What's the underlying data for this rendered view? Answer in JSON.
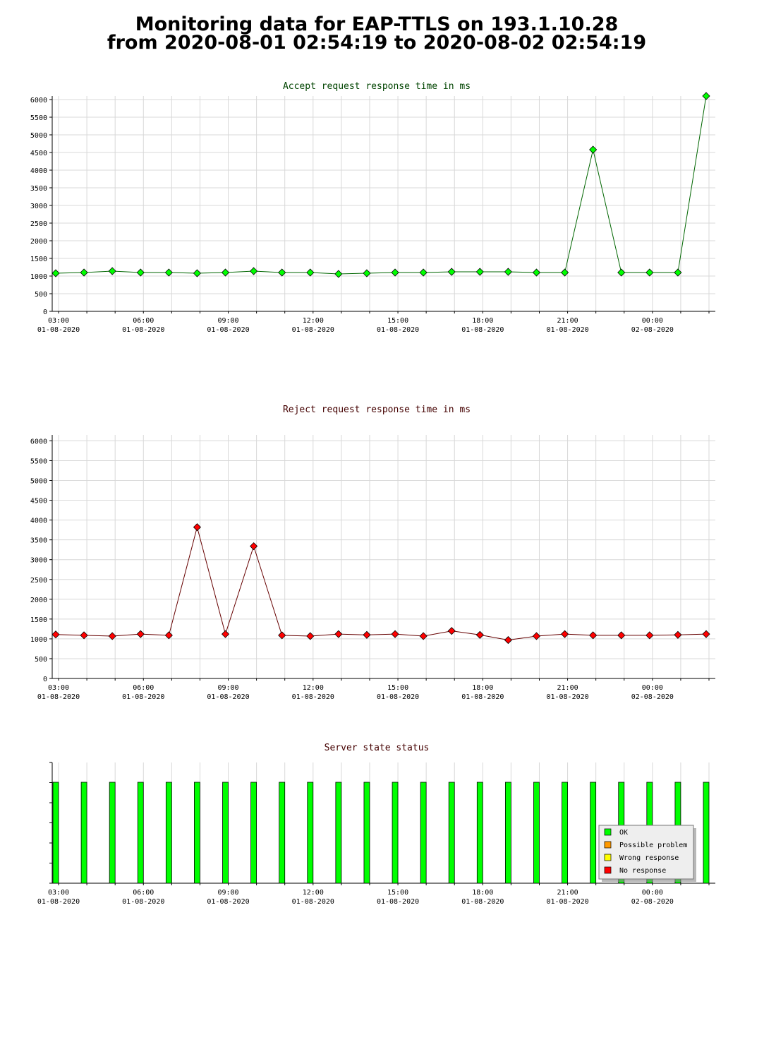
{
  "title": {
    "line1": "Monitoring data for EAP-TTLS on 193.1.10.28",
    "line2": "from 2020-08-01 02:54:19 to 2020-08-02 02:54:19"
  },
  "colors": {
    "accept_marker": "#00ff00",
    "accept_line": "#006600",
    "reject_marker": "#ff0000",
    "reject_line": "#660000",
    "ok": "#00ff00",
    "possible_problem": "#ff9900",
    "wrong_response": "#ffff00",
    "no_response": "#ff0000",
    "grid": "#d8d8d8"
  },
  "x_axis_labels": [
    {
      "time": "03:00",
      "date": "01-08-2020"
    },
    {
      "time": "06:00",
      "date": "01-08-2020"
    },
    {
      "time": "09:00",
      "date": "01-08-2020"
    },
    {
      "time": "12:00",
      "date": "01-08-2020"
    },
    {
      "time": "15:00",
      "date": "01-08-2020"
    },
    {
      "time": "18:00",
      "date": "01-08-2020"
    },
    {
      "time": "21:00",
      "date": "01-08-2020"
    },
    {
      "time": "00:00",
      "date": "02-08-2020"
    }
  ],
  "chart_data": [
    {
      "type": "line",
      "title": "Accept request response time in ms",
      "x_start": "2020-08-01 02:54:19",
      "x_end": "2020-08-02 02:54:19",
      "x": [
        "02:54",
        "03:54",
        "04:54",
        "05:54",
        "06:54",
        "07:54",
        "08:54",
        "09:54",
        "10:54",
        "11:54",
        "12:54",
        "13:54",
        "14:54",
        "15:54",
        "16:54",
        "17:54",
        "18:54",
        "19:54",
        "20:54",
        "21:54",
        "22:54",
        "23:54",
        "00:54",
        "01:54"
      ],
      "series": [
        {
          "values": [
            1080,
            1100,
            1140,
            1100,
            1100,
            1080,
            1100,
            1140,
            1100,
            1100,
            1060,
            1080,
            1100,
            1100,
            1120,
            1120,
            1120,
            1100,
            1100,
            4580,
            1100,
            1100,
            1100,
            6100
          ]
        }
      ],
      "ylim": [
        0,
        6100
      ],
      "yticks": [
        0,
        500,
        1000,
        1500,
        2000,
        2500,
        3000,
        3500,
        4000,
        4500,
        5000,
        5500,
        6000
      ],
      "grid": true
    },
    {
      "type": "line",
      "title": "Reject request response time in ms",
      "x_start": "2020-08-01 02:54:19",
      "x_end": "2020-08-02 02:54:19",
      "x": [
        "02:54",
        "03:54",
        "04:54",
        "05:54",
        "06:54",
        "07:54",
        "08:54",
        "09:54",
        "10:54",
        "11:54",
        "12:54",
        "13:54",
        "14:54",
        "15:54",
        "16:54",
        "17:54",
        "18:54",
        "19:54",
        "20:54",
        "21:54",
        "22:54",
        "23:54",
        "00:54",
        "01:54"
      ],
      "series": [
        {
          "values": [
            1110,
            1090,
            1070,
            1120,
            1090,
            3820,
            1120,
            3340,
            1090,
            1070,
            1120,
            1100,
            1120,
            1070,
            1200,
            1100,
            970,
            1070,
            1120,
            1090,
            1090,
            1090,
            1100,
            1120
          ]
        }
      ],
      "ylim": [
        0,
        6150
      ],
      "yticks": [
        0,
        500,
        1000,
        1500,
        2000,
        2500,
        3000,
        3500,
        4000,
        4500,
        5000,
        5500,
        6000
      ],
      "grid": true
    },
    {
      "type": "bar",
      "title": "Server state status",
      "x_start": "2020-08-01 02:54:19",
      "x_end": "2020-08-02 02:54:19",
      "x": [
        "02:54",
        "03:54",
        "04:54",
        "05:54",
        "06:54",
        "07:54",
        "08:54",
        "09:54",
        "10:54",
        "11:54",
        "12:54",
        "13:54",
        "14:54",
        "15:54",
        "16:54",
        "17:54",
        "18:54",
        "19:54",
        "20:54",
        "21:54",
        "22:54",
        "23:54",
        "00:54",
        "01:54"
      ],
      "status": [
        "OK",
        "OK",
        "OK",
        "OK",
        "OK",
        "OK",
        "OK",
        "OK",
        "OK",
        "OK",
        "OK",
        "OK",
        "OK",
        "OK",
        "OK",
        "OK",
        "OK",
        "OK",
        "OK",
        "OK",
        "OK",
        "OK",
        "OK",
        "OK"
      ],
      "legend": [
        "OK",
        "Possible problem",
        "Wrong response",
        "No response"
      ],
      "legend_placement": "bottom-right",
      "grid": false
    }
  ]
}
